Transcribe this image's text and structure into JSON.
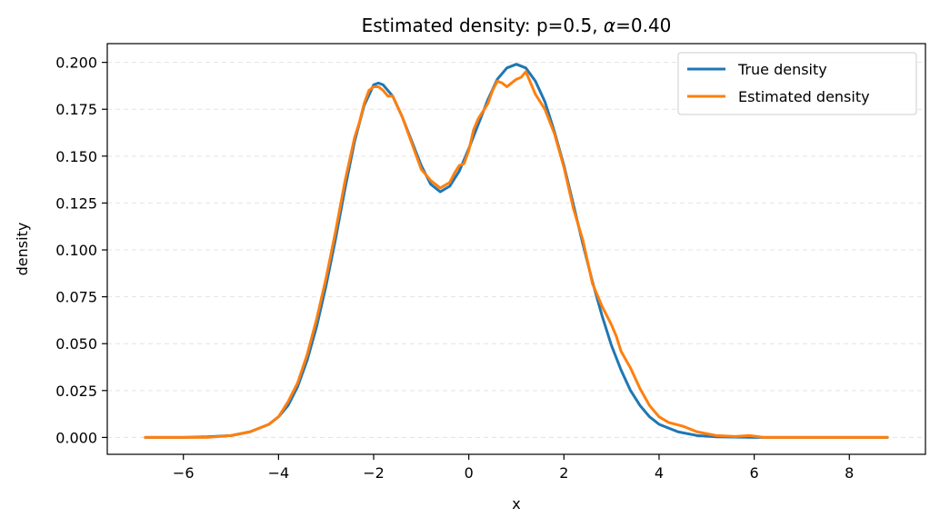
{
  "chart_data": {
    "type": "line",
    "title_prefix": "Estimated density: p=0.5, ",
    "title_symbol": "α",
    "title_suffix": "=0.40",
    "xlabel": "x",
    "ylabel": "density",
    "xlim": [
      -7.6,
      9.6
    ],
    "ylim": [
      -0.009,
      0.21
    ],
    "xticks": [
      -6,
      -4,
      -2,
      0,
      2,
      4,
      6,
      8
    ],
    "xtick_labels": [
      "−6",
      "−4",
      "−2",
      "0",
      "2",
      "4",
      "6",
      "8"
    ],
    "yticks": [
      0.0,
      0.025,
      0.05,
      0.075,
      0.1,
      0.125,
      0.15,
      0.175,
      0.2
    ],
    "ytick_labels": [
      "0.000",
      "0.025",
      "0.050",
      "0.075",
      "0.100",
      "0.125",
      "0.150",
      "0.175",
      "0.200"
    ],
    "grid": "y-dashed",
    "legend_position": "top-right",
    "series": [
      {
        "name": "True density",
        "color": "#1f77b4",
        "points": [
          [
            -6.8,
            0.0
          ],
          [
            -6.0,
            0.0
          ],
          [
            -5.5,
            0.0003
          ],
          [
            -5.0,
            0.001
          ],
          [
            -4.6,
            0.003
          ],
          [
            -4.2,
            0.007
          ],
          [
            -4.0,
            0.011
          ],
          [
            -3.8,
            0.017
          ],
          [
            -3.6,
            0.027
          ],
          [
            -3.4,
            0.041
          ],
          [
            -3.2,
            0.059
          ],
          [
            -3.0,
            0.081
          ],
          [
            -2.8,
            0.106
          ],
          [
            -2.6,
            0.133
          ],
          [
            -2.4,
            0.158
          ],
          [
            -2.2,
            0.177
          ],
          [
            -2.0,
            0.188
          ],
          [
            -1.9,
            0.189
          ],
          [
            -1.8,
            0.188
          ],
          [
            -1.6,
            0.182
          ],
          [
            -1.4,
            0.171
          ],
          [
            -1.2,
            0.158
          ],
          [
            -1.0,
            0.145
          ],
          [
            -0.8,
            0.135
          ],
          [
            -0.6,
            0.131
          ],
          [
            -0.4,
            0.134
          ],
          [
            -0.2,
            0.142
          ],
          [
            0.0,
            0.154
          ],
          [
            0.2,
            0.167
          ],
          [
            0.4,
            0.18
          ],
          [
            0.6,
            0.191
          ],
          [
            0.8,
            0.197
          ],
          [
            1.0,
            0.199
          ],
          [
            1.2,
            0.197
          ],
          [
            1.4,
            0.19
          ],
          [
            1.6,
            0.179
          ],
          [
            1.8,
            0.163
          ],
          [
            2.0,
            0.145
          ],
          [
            2.2,
            0.124
          ],
          [
            2.4,
            0.103
          ],
          [
            2.6,
            0.083
          ],
          [
            2.8,
            0.065
          ],
          [
            3.0,
            0.049
          ],
          [
            3.2,
            0.036
          ],
          [
            3.4,
            0.025
          ],
          [
            3.6,
            0.017
          ],
          [
            3.8,
            0.011
          ],
          [
            4.0,
            0.007
          ],
          [
            4.4,
            0.003
          ],
          [
            4.8,
            0.001
          ],
          [
            5.2,
            0.0003
          ],
          [
            6.0,
            0.0
          ],
          [
            7.0,
            0.0
          ],
          [
            8.0,
            0.0
          ],
          [
            8.8,
            0.0
          ]
        ]
      },
      {
        "name": "Estimated density",
        "color": "#ff7f0e",
        "points": [
          [
            -6.8,
            0.0
          ],
          [
            -6.0,
            0.0
          ],
          [
            -5.5,
            0.0
          ],
          [
            -5.0,
            0.001
          ],
          [
            -4.6,
            0.003
          ],
          [
            -4.2,
            0.007
          ],
          [
            -4.0,
            0.011
          ],
          [
            -3.8,
            0.019
          ],
          [
            -3.6,
            0.029
          ],
          [
            -3.4,
            0.044
          ],
          [
            -3.2,
            0.063
          ],
          [
            -3.0,
            0.085
          ],
          [
            -2.8,
            0.11
          ],
          [
            -2.6,
            0.137
          ],
          [
            -2.4,
            0.16
          ],
          [
            -2.3,
            0.168
          ],
          [
            -2.2,
            0.178
          ],
          [
            -2.1,
            0.185
          ],
          [
            -2.0,
            0.187
          ],
          [
            -1.9,
            0.187
          ],
          [
            -1.8,
            0.185
          ],
          [
            -1.7,
            0.182
          ],
          [
            -1.6,
            0.182
          ],
          [
            -1.4,
            0.171
          ],
          [
            -1.2,
            0.157
          ],
          [
            -1.0,
            0.143
          ],
          [
            -0.8,
            0.137
          ],
          [
            -0.6,
            0.133
          ],
          [
            -0.4,
            0.136
          ],
          [
            -0.3,
            0.141
          ],
          [
            -0.2,
            0.145
          ],
          [
            -0.1,
            0.146
          ],
          [
            0.0,
            0.153
          ],
          [
            0.1,
            0.164
          ],
          [
            0.2,
            0.17
          ],
          [
            0.4,
            0.178
          ],
          [
            0.5,
            0.185
          ],
          [
            0.6,
            0.19
          ],
          [
            0.7,
            0.189
          ],
          [
            0.8,
            0.187
          ],
          [
            0.9,
            0.189
          ],
          [
            1.0,
            0.191
          ],
          [
            1.1,
            0.192
          ],
          [
            1.2,
            0.195
          ],
          [
            1.3,
            0.189
          ],
          [
            1.4,
            0.183
          ],
          [
            1.6,
            0.175
          ],
          [
            1.8,
            0.162
          ],
          [
            2.0,
            0.144
          ],
          [
            2.2,
            0.122
          ],
          [
            2.4,
            0.105
          ],
          [
            2.6,
            0.082
          ],
          [
            2.8,
            0.07
          ],
          [
            3.0,
            0.06
          ],
          [
            3.1,
            0.054
          ],
          [
            3.2,
            0.046
          ],
          [
            3.4,
            0.037
          ],
          [
            3.6,
            0.026
          ],
          [
            3.8,
            0.017
          ],
          [
            4.0,
            0.011
          ],
          [
            4.2,
            0.008
          ],
          [
            4.5,
            0.006
          ],
          [
            4.8,
            0.003
          ],
          [
            5.2,
            0.001
          ],
          [
            5.6,
            0.0005
          ],
          [
            5.9,
            0.001
          ],
          [
            6.2,
            0.0
          ],
          [
            7.0,
            0.0
          ],
          [
            8.0,
            0.0
          ],
          [
            8.8,
            0.0
          ]
        ]
      }
    ]
  }
}
